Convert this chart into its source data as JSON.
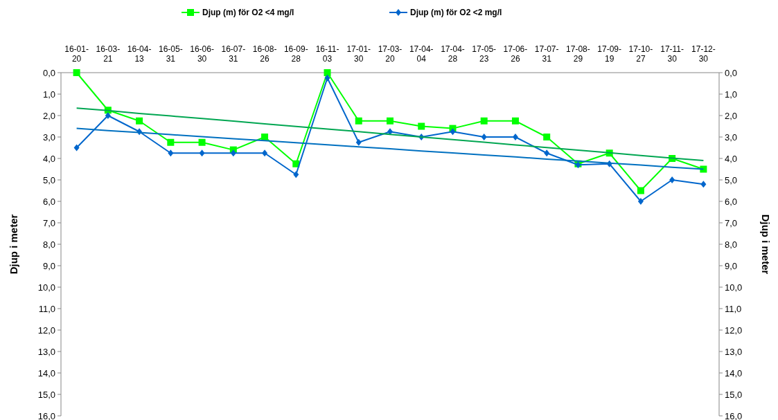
{
  "chart_data": {
    "type": "line",
    "categories": [
      "16-01-20",
      "16-03-21",
      "16-04-13",
      "16-05-31",
      "16-06-30",
      "16-07-31",
      "16-08-26",
      "16-09-28",
      "16-11-03",
      "17-01-30",
      "17-03-20",
      "17-04-04",
      "17-04-28",
      "17-05-23",
      "17-06-26",
      "17-07-31",
      "17-08-29",
      "17-09-19",
      "17-10-27",
      "17-11-30",
      "17-12-30"
    ],
    "ylabel": "Djup i meter",
    "y2label": "Djup i meter",
    "ylim": [
      16,
      0
    ],
    "y2lim": [
      16,
      0
    ],
    "yticks": [
      {
        "value": 0,
        "label": "0,0"
      },
      {
        "value": 1,
        "label": "1,0"
      },
      {
        "value": 2,
        "label": "2,0"
      },
      {
        "value": 3,
        "label": "3,0"
      },
      {
        "value": 4,
        "label": "4,0"
      },
      {
        "value": 5,
        "label": "5,0"
      },
      {
        "value": 6,
        "label": "6,0"
      },
      {
        "value": 7,
        "label": "7,0"
      },
      {
        "value": 8,
        "label": "8,0"
      },
      {
        "value": 9,
        "label": "9,0"
      },
      {
        "value": 10,
        "label": "10,0"
      },
      {
        "value": 11,
        "label": "11,0"
      },
      {
        "value": 12,
        "label": "12,0"
      },
      {
        "value": 13,
        "label": "13,0"
      },
      {
        "value": 14,
        "label": "14,0"
      },
      {
        "value": 15,
        "label": "15,0"
      },
      {
        "value": 16,
        "label": "16,0"
      }
    ],
    "y2ticks": [
      {
        "value": 0,
        "label": "0,0"
      },
      {
        "value": 1,
        "label": "1,0"
      },
      {
        "value": 2,
        "label": "2,0"
      },
      {
        "value": 3,
        "label": "3,0"
      },
      {
        "value": 4,
        "label": "4,0"
      },
      {
        "value": 5,
        "label": "5,0"
      },
      {
        "value": 6,
        "label": "6,0"
      },
      {
        "value": 7,
        "label": "7,0"
      },
      {
        "value": 8,
        "label": "8,0"
      },
      {
        "value": 9,
        "label": "9,0"
      },
      {
        "value": 10,
        "label": "10,0"
      },
      {
        "value": 11,
        "label": "11,0"
      },
      {
        "value": 12,
        "label": "12,0"
      },
      {
        "value": 13,
        "label": "13,0"
      },
      {
        "value": 14,
        "label": "14,0"
      },
      {
        "value": 15,
        "label": "15,0"
      },
      {
        "value": 16,
        "label": "16,0"
      }
    ],
    "legend": "top",
    "grid": false,
    "series": [
      {
        "name": "Djup (m) för O2 <4 mg/l",
        "color": "#00ff00",
        "marker": "square",
        "values": [
          0,
          1.75,
          2.25,
          3.25,
          3.25,
          3.6,
          3.0,
          4.25,
          0,
          2.25,
          2.25,
          2.5,
          2.6,
          2.25,
          2.25,
          3.0,
          4.25,
          3.75,
          5.5,
          4.0,
          4.5
        ]
      },
      {
        "name": "Djup (m) för O2 <2 mg/l",
        "color": "#0066cc",
        "marker": "diamond",
        "values": [
          3.5,
          2.0,
          2.75,
          3.75,
          3.75,
          3.75,
          3.75,
          4.75,
          0.25,
          3.25,
          2.75,
          3.0,
          2.75,
          3.0,
          3.0,
          3.75,
          4.3,
          4.25,
          6.0,
          5.0,
          5.2
        ]
      },
      {
        "color": "#00a651",
        "marker": "none",
        "values": [
          1.65,
          1.77,
          1.9,
          2.02,
          2.14,
          2.26,
          2.39,
          2.51,
          2.63,
          2.75,
          2.88,
          3.0,
          3.12,
          3.24,
          3.37,
          3.49,
          3.61,
          3.73,
          3.86,
          3.98,
          4.1
        ]
      },
      {
        "color": "#0070c0",
        "marker": "none",
        "values": [
          2.6,
          2.7,
          2.79,
          2.89,
          2.98,
          3.08,
          3.17,
          3.27,
          3.36,
          3.46,
          3.55,
          3.65,
          3.74,
          3.84,
          3.93,
          4.03,
          4.12,
          4.22,
          4.31,
          4.41,
          4.5
        ]
      }
    ]
  }
}
